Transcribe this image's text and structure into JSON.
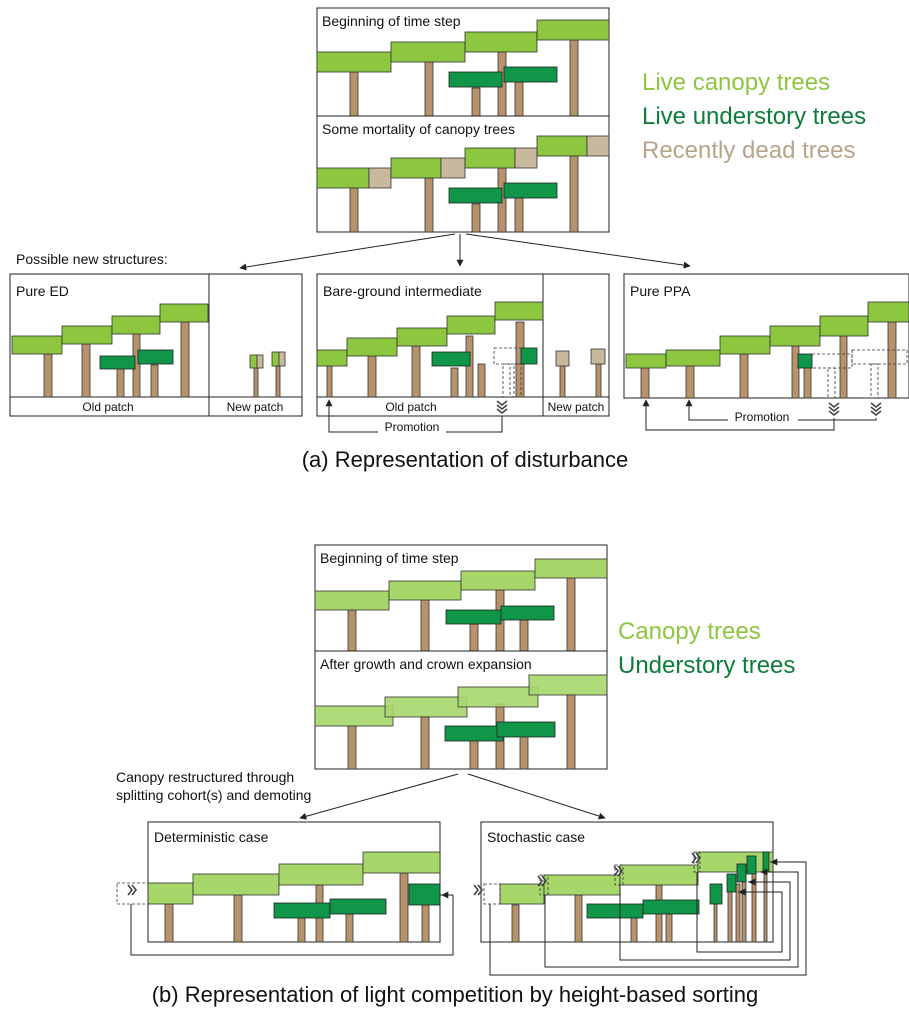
{
  "panel_a": {
    "box_top_label": "Beginning of time step",
    "box_mid_label": "Some mortality of canopy trees",
    "possible_label": "Possible new structures:",
    "pure_ed_label": "Pure ED",
    "bare_label": "Bare-ground intermediate",
    "pure_ppa_label": "Pure PPA",
    "old_patch": "Old patch",
    "new_patch": "New patch",
    "promotion": "Promotion",
    "caption": "(a) Representation of disturbance",
    "legend": [
      {
        "text": "Live canopy trees",
        "color": "#8dc63f"
      },
      {
        "text": "Live understory trees",
        "color": "#0f7d3a"
      },
      {
        "text": "Recently dead trees",
        "color": "#b7a489"
      }
    ]
  },
  "panel_b": {
    "box_top_label": "Beginning of time step",
    "box_mid_label": "After growth and crown expansion",
    "restructure_line1": "Canopy restructured through",
    "restructure_line2": "splitting cohort(s) and demoting",
    "deterministic_label": "Deterministic case",
    "stochastic_label": "Stochastic case",
    "caption": "(b) Representation of light competition by height-based sorting",
    "legend": [
      {
        "text": "Canopy trees",
        "color": "#8dc63f"
      },
      {
        "text": "Understory trees",
        "color": "#0f7d3a"
      }
    ]
  }
}
